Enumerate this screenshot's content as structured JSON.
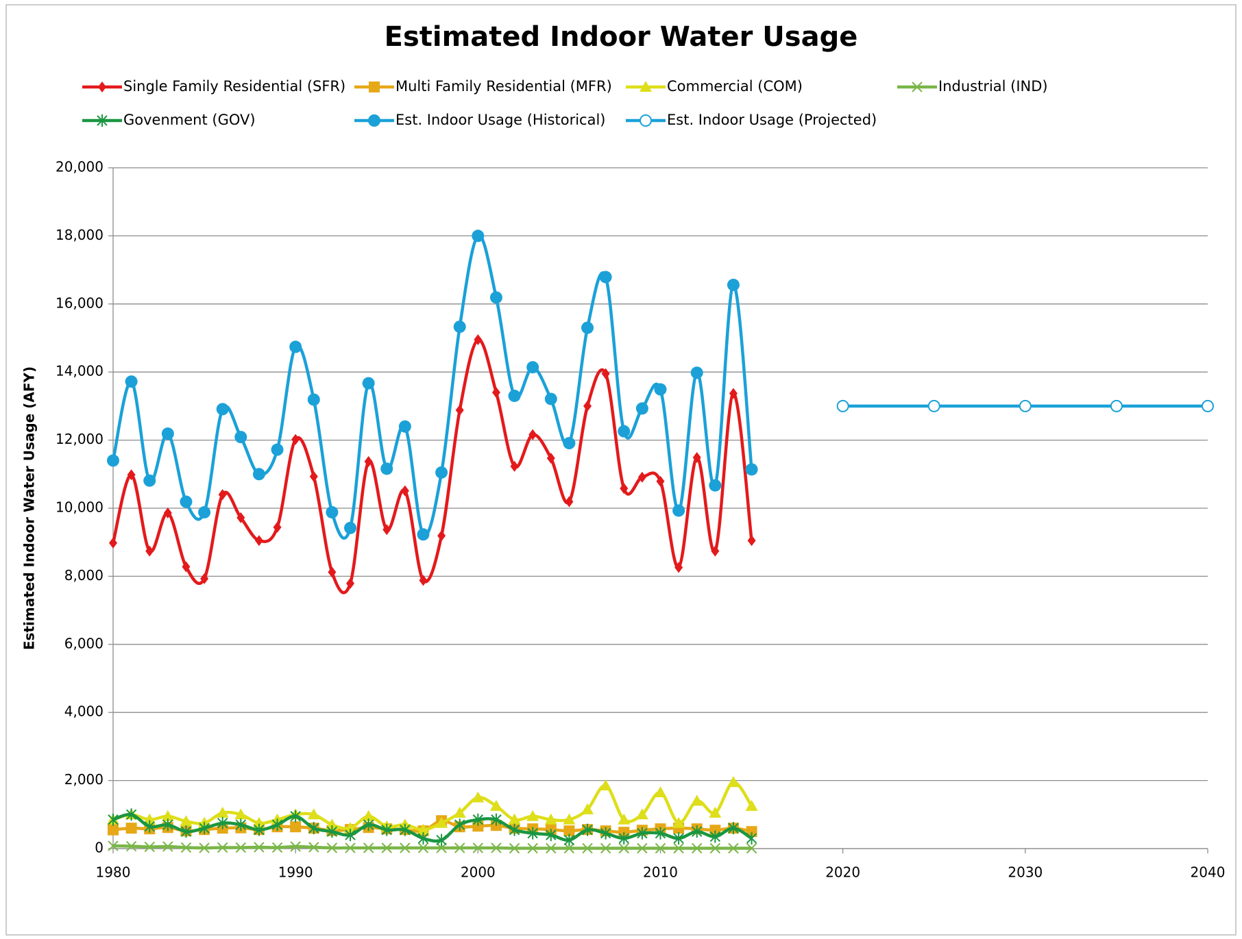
{
  "chart_data": {
    "type": "line",
    "title": "Estimated Indoor Water Usage",
    "y_label": "Estimated Indoor Water Usage (AFY)",
    "x": [
      1980,
      1981,
      1982,
      1983,
      1984,
      1985,
      1986,
      1987,
      1988,
      1989,
      1990,
      1991,
      1992,
      1993,
      1994,
      1995,
      1996,
      1997,
      1998,
      1999,
      2000,
      2001,
      2002,
      2003,
      2004,
      2005,
      2006,
      2007,
      2008,
      2009,
      2010,
      2011,
      2012,
      2013,
      2014,
      2015,
      2020,
      2025,
      2030,
      2035,
      2040
    ],
    "xlim": [
      1980,
      2040
    ],
    "xticks": [
      1980,
      1990,
      2000,
      2010,
      2020,
      2030,
      2040
    ],
    "ylim": [
      0,
      20000
    ],
    "yticks": [
      0,
      {
        "value": 2000,
        "label": "2,000"
      },
      {
        "value": 4000,
        "label": "4,000"
      },
      {
        "value": 6000,
        "label": "6,000"
      },
      {
        "value": 8000,
        "label": "8,000"
      },
      {
        "value": 10000,
        "label": "10,000"
      },
      {
        "value": 12000,
        "label": "12,000"
      },
      {
        "value": 14000,
        "label": "14,000"
      },
      {
        "value": 16000,
        "label": "16,000"
      },
      {
        "value": 18000,
        "label": "18,000"
      },
      {
        "value": 20000,
        "label": "20,000"
      }
    ],
    "grid": true,
    "smooth": true,
    "legend": "top",
    "series": [
      {
        "name": "Single Family Residential (SFR)",
        "color": "#e31a1c",
        "marker": "diamond",
        "values": [
          8980,
          10980,
          8740,
          9860,
          8280,
          7930,
          10400,
          9720,
          9050,
          9440,
          12020,
          10930,
          8120,
          7790,
          11370,
          9370,
          10510,
          7880,
          9190,
          12880,
          14950,
          13400,
          11230,
          12160,
          11470,
          10190,
          13000,
          13950,
          10580,
          10910,
          10790,
          8260,
          11490,
          8740,
          13370,
          9050,
          null,
          null,
          null,
          null,
          null
        ]
      },
      {
        "name": "Multi Family Residential (MFR)",
        "color": "#e6a817",
        "marker": "square",
        "values": [
          550,
          600,
          580,
          620,
          520,
          560,
          600,
          610,
          560,
          640,
          640,
          600,
          530,
          560,
          620,
          580,
          560,
          520,
          820,
          640,
          660,
          680,
          600,
          580,
          560,
          520,
          560,
          520,
          480,
          540,
          580,
          600,
          580,
          540,
          600,
          500,
          null,
          null,
          null,
          null,
          null
        ]
      },
      {
        "name": "Commercial (COM)",
        "color": "#dede1a",
        "marker": "triangle",
        "values": [
          850,
          1000,
          850,
          950,
          800,
          750,
          1050,
          1000,
          750,
          850,
          1000,
          1000,
          700,
          600,
          950,
          650,
          700,
          550,
          750,
          1050,
          1500,
          1250,
          850,
          950,
          850,
          850,
          1150,
          1850,
          850,
          1000,
          1650,
          750,
          1400,
          1050,
          1950,
          1250,
          null,
          null,
          null,
          null,
          null
        ]
      },
      {
        "name": "Industrial (IND)",
        "color": "#7ab648",
        "marker": "x",
        "values": [
          80,
          70,
          50,
          60,
          30,
          20,
          30,
          30,
          40,
          30,
          60,
          40,
          20,
          20,
          20,
          20,
          20,
          20,
          20,
          20,
          20,
          20,
          10,
          10,
          10,
          10,
          10,
          10,
          10,
          10,
          10,
          10,
          10,
          10,
          10,
          10,
          null,
          null,
          null,
          null,
          null
        ]
      },
      {
        "name": "Govenment (GOV)",
        "color": "#1a9641",
        "marker": "star",
        "values": [
          850,
          1000,
          650,
          700,
          500,
          600,
          750,
          700,
          550,
          700,
          950,
          600,
          500,
          400,
          700,
          550,
          550,
          300,
          250,
          700,
          850,
          850,
          550,
          450,
          400,
          250,
          550,
          450,
          300,
          450,
          450,
          300,
          500,
          350,
          600,
          300,
          null,
          null,
          null,
          null,
          null
        ]
      },
      {
        "name": "Est. Indoor Usage (Historical)",
        "color": "#1ba1d8",
        "marker": "circle",
        "values": [
          11400,
          13720,
          10810,
          12190,
          10190,
          9880,
          12910,
          12090,
          11000,
          11720,
          14740,
          13190,
          9880,
          9420,
          13670,
          11160,
          12400,
          9230,
          11050,
          15330,
          18000,
          16190,
          13300,
          14140,
          13210,
          11910,
          15300,
          16790,
          12260,
          12930,
          13490,
          9930,
          13980,
          10670,
          16560,
          11140,
          null,
          null,
          null,
          null,
          null
        ]
      },
      {
        "name": "Est. Indoor Usage (Projected)",
        "color": "#1ba1d8",
        "marker": "open-circle",
        "smooth": false,
        "values": [
          null,
          null,
          null,
          null,
          null,
          null,
          null,
          null,
          null,
          null,
          null,
          null,
          null,
          null,
          null,
          null,
          null,
          null,
          null,
          null,
          null,
          null,
          null,
          null,
          null,
          null,
          null,
          null,
          null,
          null,
          null,
          null,
          null,
          null,
          null,
          null,
          13000,
          13000,
          13000,
          13000,
          13000
        ]
      }
    ]
  }
}
